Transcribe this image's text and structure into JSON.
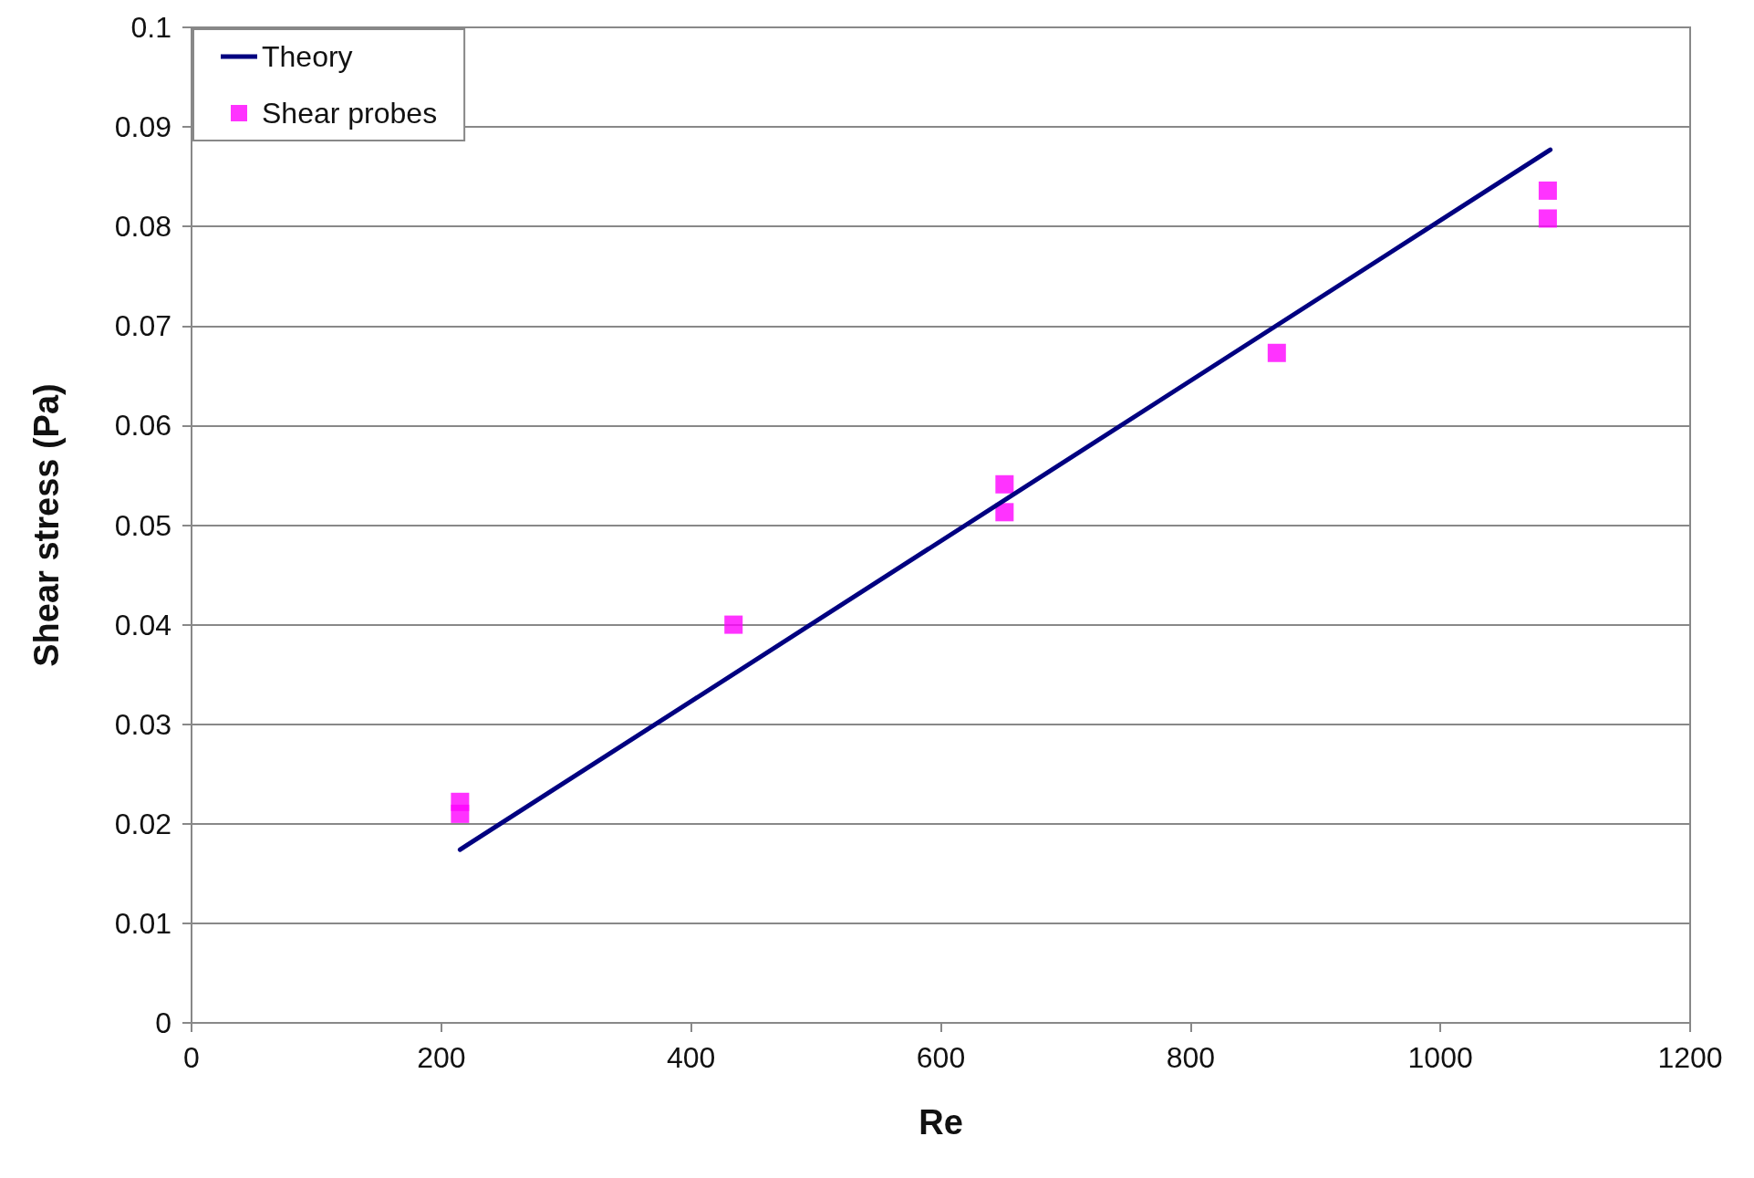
{
  "chart_data": {
    "type": "scatter",
    "xlabel": "Re",
    "ylabel": "Shear stress (Pa)",
    "xlim": [
      0,
      1200
    ],
    "xticks": [
      0,
      200,
      400,
      600,
      800,
      1000,
      1200
    ],
    "ylim": [
      0,
      0.1
    ],
    "yticks": [
      0,
      0.01,
      0.02,
      0.03,
      0.04,
      0.05,
      0.06,
      0.07,
      0.08,
      0.09,
      0.1
    ],
    "grid": "y",
    "legend": "top left",
    "series": [
      {
        "name": "Theory",
        "type": "line",
        "color": "#000080",
        "marker": "none",
        "line_style": "solid",
        "x": [
          215,
          1088
        ],
        "values": [
          0.0174,
          0.0877
        ]
      },
      {
        "name": "Shear probes",
        "color": "#ff00ff",
        "marker": "square",
        "x": [
          215,
          215,
          434,
          651,
          651,
          869,
          1086,
          1086
        ],
        "values": [
          0.0222,
          0.021,
          0.04,
          0.0541,
          0.0513,
          0.0673,
          0.0836,
          0.0808
        ]
      }
    ]
  }
}
